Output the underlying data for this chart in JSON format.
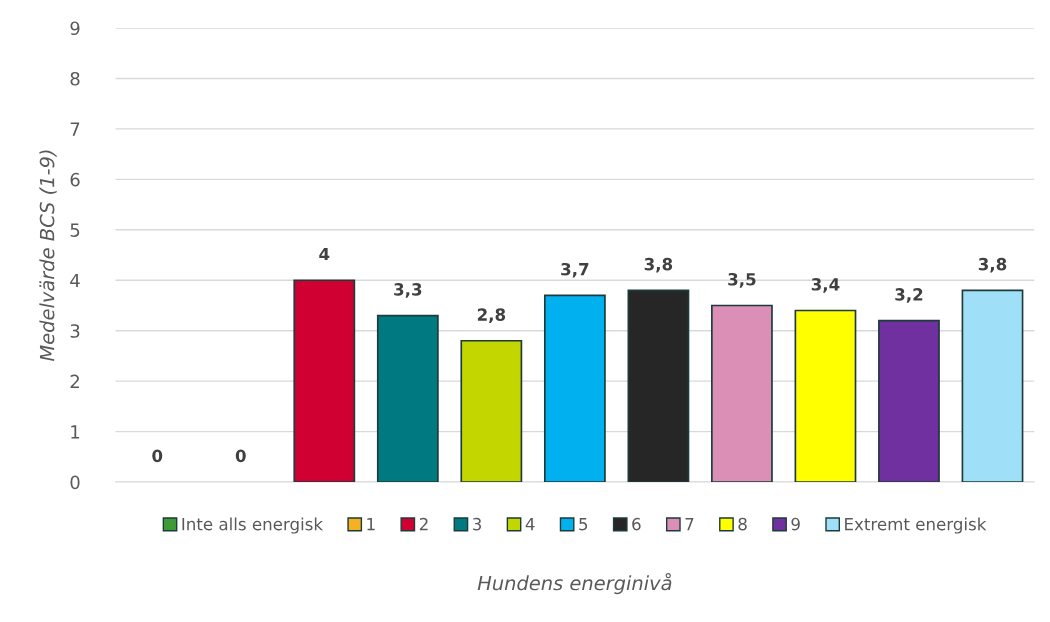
{
  "chart_data": {
    "type": "bar",
    "xlabel": "Hundens energinivå",
    "ylabel": "Medelvärde BCS (1-9)",
    "categories": [
      null,
      null,
      null,
      null,
      null,
      null,
      null,
      null,
      null,
      null,
      null
    ],
    "series": [
      {
        "name": "Inte alls energisk",
        "color": "#3f9b35",
        "values": [
          0,
          null,
          null,
          null,
          null,
          null,
          null,
          null,
          null,
          null,
          null
        ],
        "value_labels": [
          "0",
          null,
          null,
          null,
          null,
          null,
          null,
          null,
          null,
          null,
          null
        ]
      },
      {
        "name": "1",
        "color": "#f5b120",
        "values": [
          null,
          0,
          null,
          null,
          null,
          null,
          null,
          null,
          null,
          null,
          null
        ],
        "value_labels": [
          null,
          "0",
          null,
          null,
          null,
          null,
          null,
          null,
          null,
          null,
          null
        ]
      },
      {
        "name": "2",
        "color": "#d00032",
        "values": [
          null,
          null,
          4,
          null,
          null,
          null,
          null,
          null,
          null,
          null,
          null
        ],
        "value_labels": [
          null,
          null,
          "4",
          null,
          null,
          null,
          null,
          null,
          null,
          null,
          null
        ]
      },
      {
        "name": "3",
        "color": "#007a80",
        "values": [
          null,
          null,
          null,
          3.3,
          null,
          null,
          null,
          null,
          null,
          null,
          null
        ],
        "value_labels": [
          null,
          null,
          null,
          "3,3",
          null,
          null,
          null,
          null,
          null,
          null,
          null
        ]
      },
      {
        "name": "4",
        "color": "#c4d600",
        "values": [
          null,
          null,
          null,
          null,
          2.8,
          null,
          null,
          null,
          null,
          null,
          null
        ],
        "value_labels": [
          null,
          null,
          null,
          null,
          "2,8",
          null,
          null,
          null,
          null,
          null,
          null
        ]
      },
      {
        "name": "5",
        "color": "#00b0ef",
        "values": [
          null,
          null,
          null,
          null,
          null,
          3.7,
          null,
          null,
          null,
          null,
          null
        ],
        "value_labels": [
          null,
          null,
          null,
          null,
          null,
          "3,7",
          null,
          null,
          null,
          null,
          null
        ]
      },
      {
        "name": "6",
        "color": "#262626",
        "values": [
          null,
          null,
          null,
          null,
          null,
          null,
          3.8,
          null,
          null,
          null,
          null
        ],
        "value_labels": [
          null,
          null,
          null,
          null,
          null,
          null,
          "3,8",
          null,
          null,
          null,
          null
        ]
      },
      {
        "name": "7",
        "color": "#dc8fb6",
        "values": [
          null,
          null,
          null,
          null,
          null,
          null,
          null,
          3.5,
          null,
          null,
          null
        ],
        "value_labels": [
          null,
          null,
          null,
          null,
          null,
          null,
          null,
          "3,5",
          null,
          null,
          null
        ]
      },
      {
        "name": "8",
        "color": "#ffff00",
        "values": [
          null,
          null,
          null,
          null,
          null,
          null,
          null,
          null,
          3.4,
          null,
          null
        ],
        "value_labels": [
          null,
          null,
          null,
          null,
          null,
          null,
          null,
          null,
          "3,4",
          null,
          null
        ]
      },
      {
        "name": "9",
        "color": "#7030a0",
        "values": [
          null,
          null,
          null,
          null,
          null,
          null,
          null,
          null,
          null,
          3.2,
          null
        ],
        "value_labels": [
          null,
          null,
          null,
          null,
          null,
          null,
          null,
          null,
          null,
          "3,2",
          null
        ]
      },
      {
        "name": "Extremt energisk",
        "color": "#a0dff8",
        "values": [
          null,
          null,
          null,
          null,
          null,
          null,
          null,
          null,
          null,
          null,
          3.8
        ],
        "value_labels": [
          null,
          null,
          null,
          null,
          null,
          null,
          null,
          null,
          null,
          null,
          "3,8"
        ]
      }
    ],
    "ylim": [
      0,
      9
    ],
    "yticks": [
      0,
      1,
      2,
      3,
      4,
      5,
      6,
      7,
      8,
      9
    ],
    "grid": "y",
    "legend": "bottom"
  }
}
